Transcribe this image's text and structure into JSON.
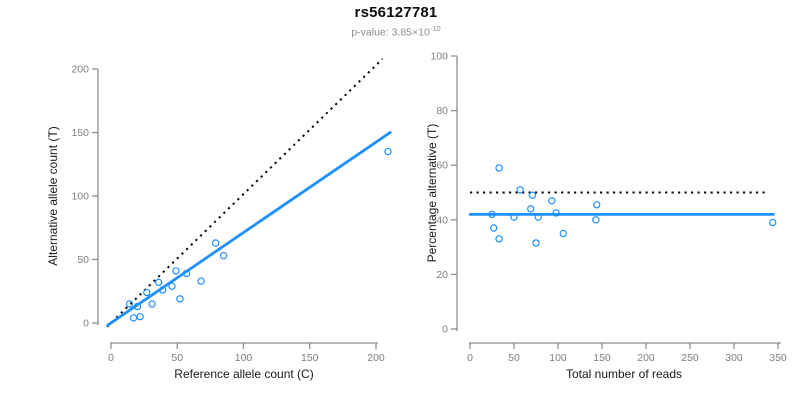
{
  "header": {
    "title": "rs56127781",
    "pvalue_prefix": "p-value: 3.85×10",
    "pvalue_exponent": "-10"
  },
  "palette": {
    "accent_blue": "#1E90FF",
    "dotted_black": "#0a0a0a",
    "axis_gray": "#8f8f8f",
    "tick_label_gray": "#7f7f7f"
  },
  "chart_data": [
    {
      "type": "scatter",
      "panel": "left",
      "xlabel": "Reference allele count (C)",
      "ylabel": "Alternative allele count (T)",
      "xticks": [
        0,
        50,
        100,
        150,
        200
      ],
      "yticks": [
        0,
        50,
        100,
        150,
        200
      ],
      "xlim": [
        -10,
        218
      ],
      "ylim": [
        -16,
        209
      ],
      "grid": false,
      "points": [
        [
          209,
          135
        ],
        [
          79,
          63
        ],
        [
          85,
          53
        ],
        [
          57,
          39
        ],
        [
          49,
          41
        ],
        [
          68,
          33
        ],
        [
          36,
          32
        ],
        [
          46,
          29
        ],
        [
          39,
          26
        ],
        [
          27,
          24
        ],
        [
          52,
          19
        ],
        [
          31,
          15
        ],
        [
          14,
          15
        ],
        [
          20,
          13
        ],
        [
          17,
          4
        ],
        [
          22,
          5
        ]
      ],
      "lines": [
        {
          "name": "identity-line",
          "style": "dotted",
          "color": "black",
          "x1": -3,
          "y1": -3,
          "x2": 205,
          "y2": 208
        },
        {
          "name": "fit-line",
          "style": "solid",
          "color": "blue",
          "x1": -3,
          "y1": -2.1,
          "x2": 211.5,
          "y2": 150.6
        }
      ]
    },
    {
      "type": "scatter",
      "panel": "right",
      "xlabel": "Total number of reads",
      "ylabel": "Percentage alternative (T)",
      "xticks": [
        0,
        50,
        100,
        150,
        200,
        250,
        300,
        350
      ],
      "yticks": [
        0,
        20,
        40,
        60,
        80,
        100
      ],
      "xlim": [
        -15,
        358
      ],
      "ylim": [
        -5,
        100
      ],
      "grid": false,
      "points": [
        [
          33,
          59
        ],
        [
          57,
          51
        ],
        [
          71,
          49
        ],
        [
          93,
          47
        ],
        [
          144,
          45.5
        ],
        [
          69,
          44
        ],
        [
          25,
          42
        ],
        [
          98,
          42.5
        ],
        [
          50,
          41
        ],
        [
          77.5,
          41
        ],
        [
          143,
          40
        ],
        [
          344,
          39
        ],
        [
          27,
          37
        ],
        [
          33,
          33
        ],
        [
          106,
          35
        ],
        [
          75,
          31.5
        ]
      ],
      "lines": [
        {
          "name": "fifty-percent-line",
          "style": "dotted",
          "color": "black",
          "x1": 0,
          "y1": 50,
          "x2": 339,
          "y2": 50
        },
        {
          "name": "mean-percentage-line",
          "style": "solid",
          "color": "blue",
          "x1": -1,
          "y1": 42,
          "x2": 346,
          "y2": 42
        }
      ]
    }
  ]
}
